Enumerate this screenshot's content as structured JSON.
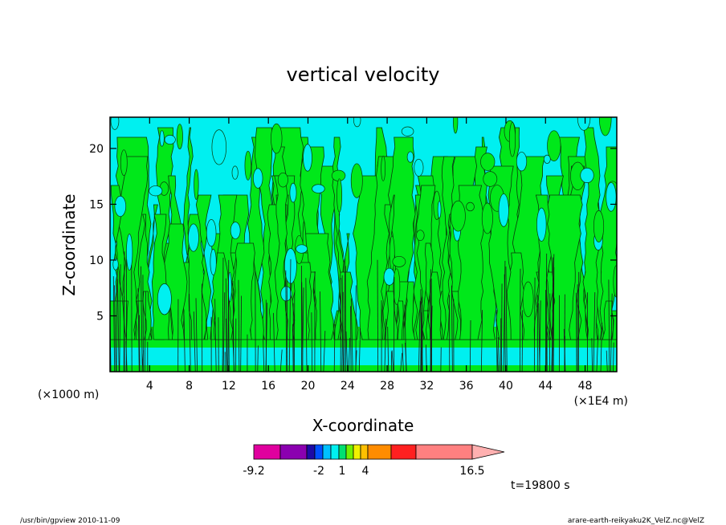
{
  "chart_data": {
    "type": "heatmap",
    "title": "vertical velocity",
    "xlabel": "X-coordinate",
    "ylabel": "Z-coordinate",
    "x_units_left": "(×1000 m)",
    "x_units_right": "(×1E4 m)",
    "xlim": [
      0,
      51.2
    ],
    "ylim": [
      0,
      22.8
    ],
    "x_ticks": [
      4,
      8,
      12,
      16,
      20,
      24,
      28,
      32,
      36,
      40,
      44,
      48
    ],
    "y_ticks": [
      5,
      10,
      15,
      20
    ],
    "grid": false,
    "colorbar": {
      "tick_labels": [
        "-9.2",
        "-2",
        "1",
        "4",
        "16.5"
      ],
      "colors": [
        "#e0009e",
        "#8b00b0",
        "#1d0aa6",
        "#0050ff",
        "#00c0ff",
        "#00f0f0",
        "#00e070",
        "#70f000",
        "#f0f000",
        "#ffc000",
        "#ff8c00",
        "#ff6000",
        "#ff2020",
        "#ff8080",
        "#ffb0b0"
      ],
      "extend": "max"
    },
    "time_label": "t=19800 s"
  },
  "footer": {
    "left": "/usr/bin/gpview  2010-11-09",
    "right": "arare-earth-reikyaku2K_VelZ.nc@VelZ"
  }
}
